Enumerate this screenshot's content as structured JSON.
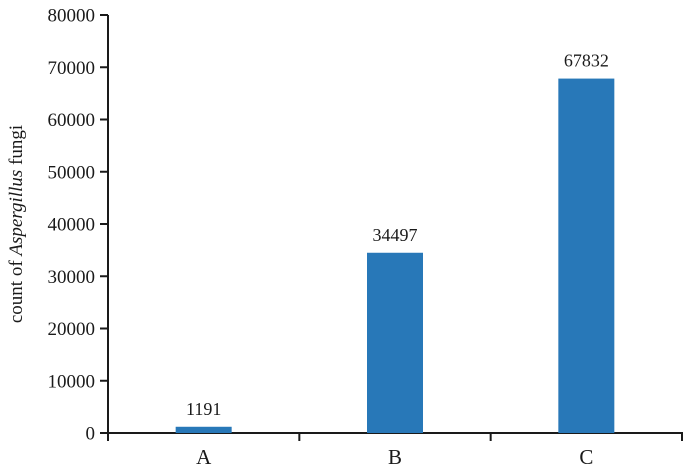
{
  "chart_data": {
    "type": "bar",
    "title": "",
    "xlabel": "",
    "ylabel": "count of Aspergillus fungi",
    "ylabel_parts": [
      {
        "text": "count of ",
        "italic": false
      },
      {
        "text": "Aspergillus",
        "italic": true
      },
      {
        "text": " fungi",
        "italic": false
      }
    ],
    "categories": [
      "A",
      "B",
      "C"
    ],
    "values": [
      1191,
      34497,
      67832
    ],
    "bar_value_labels": [
      "1191",
      "34497",
      "67832"
    ],
    "ylim": [
      0,
      80000
    ],
    "ytick_step": 10000,
    "ytick_labels": [
      "0",
      "10000",
      "20000",
      "30000",
      "40000",
      "50000",
      "60000",
      "70000",
      "80000"
    ],
    "grid": false,
    "legend": null,
    "bar_color": "#2878b8",
    "axis_color": "#1a1a1a",
    "text_color": "#1a1a1a"
  }
}
